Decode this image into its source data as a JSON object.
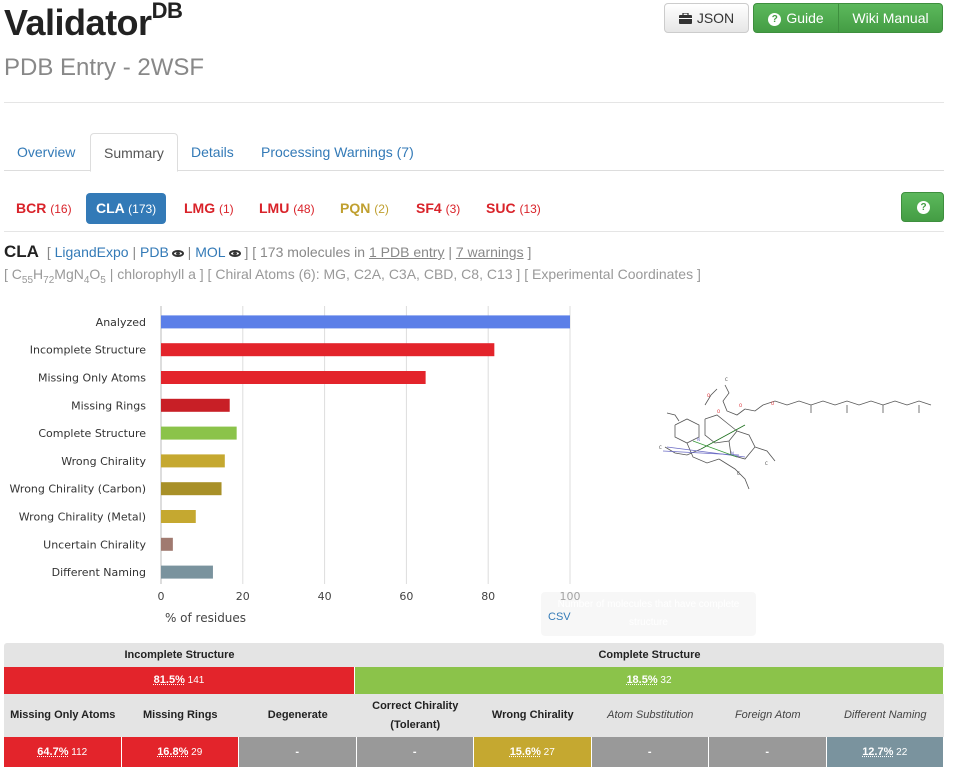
{
  "header": {
    "brand": "Validator",
    "brand_sup": "DB",
    "subtitle": "PDB Entry - 2WSF",
    "json_label": "JSON",
    "guide_label": "Guide",
    "wiki_label": "Wiki Manual"
  },
  "tabs": [
    {
      "label": "Overview"
    },
    {
      "label": "Summary"
    },
    {
      "label": "Details"
    },
    {
      "label": "Processing Warnings (7)"
    }
  ],
  "ligands": [
    {
      "code": "BCR",
      "count": "(16)",
      "color": "#d9232a"
    },
    {
      "code": "CLA",
      "count": "(173)",
      "color": "#ffffff"
    },
    {
      "code": "LMG",
      "count": "(1)",
      "color": "#d9232a"
    },
    {
      "code": "LMU",
      "count": "(48)",
      "color": "#d9232a"
    },
    {
      "code": "PQN",
      "count": "(2)",
      "color": "#c0a030"
    },
    {
      "code": "SF4",
      "count": "(3)",
      "color": "#d9232a"
    },
    {
      "code": "SUC",
      "count": "(13)",
      "color": "#d9232a"
    }
  ],
  "ligand_info": {
    "code": "CLA",
    "ligandexpo": "LigandExpo",
    "pdb": "PDB",
    "mol": "MOL",
    "molecules_pre": "173 molecules in ",
    "entry_link": "1 PDB entry",
    "warnings_link": "7 warnings",
    "formula_c": "C",
    "formula_c_n": "55",
    "formula_h": "H",
    "formula_h_n": "72",
    "formula_mg": "MgN",
    "formula_n_n": "4",
    "formula_o": "O",
    "formula_o_n": "5",
    "name": "chlorophyll a",
    "chiral": "Chiral Atoms (6): MG, C2A, C3A, CBD, C8, C13",
    "coords": "Experimental Coordinates"
  },
  "chart_data": {
    "type": "bar",
    "orientation": "horizontal",
    "categories": [
      "Analyzed",
      "Incomplete Structure",
      "Missing Only Atoms",
      "Missing Rings",
      "Complete Structure",
      "Wrong Chirality",
      "Wrong Chirality (Carbon)",
      "Wrong Chirality (Metal)",
      "Uncertain Chirality",
      "Different Naming"
    ],
    "values": [
      100,
      81.5,
      64.7,
      16.8,
      18.5,
      15.6,
      14.8,
      8.5,
      2.9,
      12.7
    ],
    "colors": [
      "#5b7fe8",
      "#e3242b",
      "#e3242b",
      "#c81f26",
      "#8bc34a",
      "#c5a830",
      "#a89028",
      "#c5a830",
      "#a07a70",
      "#7a939e"
    ],
    "xlabel": "% of residues",
    "xticks": [
      0,
      20,
      40,
      60,
      80,
      100
    ],
    "xlim": [
      0,
      100
    ],
    "grid": true
  },
  "tooltip": {
    "text": "Number of molecules that have complete structure",
    "csv": "CSV"
  },
  "table": {
    "incomplete_header": "Incomplete Structure",
    "complete_header": "Complete Structure",
    "incomplete_pct": "81.5%",
    "incomplete_n": "141",
    "complete_pct": "18.5%",
    "complete_n": "32",
    "columns": [
      {
        "label": "Missing Only Atoms",
        "value": "64.7%",
        "n": "112",
        "color": "#e3242b",
        "italic": false
      },
      {
        "label": "Missing Rings",
        "value": "16.8%",
        "n": "29",
        "color": "#e3242b",
        "italic": false
      },
      {
        "label": "Degenerate",
        "value": "-",
        "n": "",
        "color": "#999999",
        "italic": false
      },
      {
        "label": "Correct Chirality (Tolerant)",
        "value": "-",
        "n": "",
        "color": "#999999",
        "italic": false
      },
      {
        "label": "Wrong Chirality",
        "value": "15.6%",
        "n": "27",
        "color": "#c5a830",
        "italic": false
      },
      {
        "label": "Atom Substitution",
        "value": "-",
        "n": "",
        "color": "#999999",
        "italic": true
      },
      {
        "label": "Foreign Atom",
        "value": "-",
        "n": "",
        "color": "#999999",
        "italic": true
      },
      {
        "label": "Different Naming",
        "value": "12.7%",
        "n": "22",
        "color": "#7a939e",
        "italic": true
      }
    ]
  }
}
